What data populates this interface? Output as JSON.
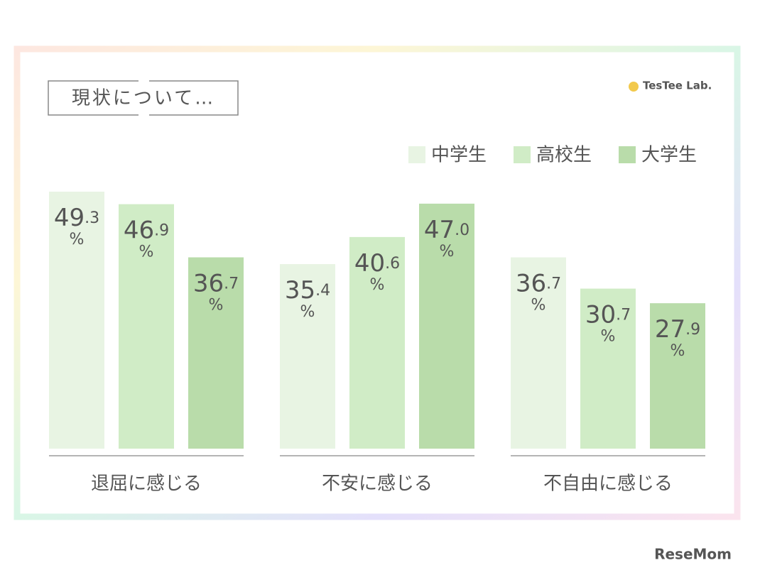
{
  "chart_data": {
    "type": "bar",
    "title": "現状について…",
    "brand": "TesTee Lab.",
    "watermark": "ReseMom",
    "categories": [
      "退屈に感じる",
      "不安に感じる",
      "不自由に感じる"
    ],
    "series": [
      {
        "name": "中学生",
        "color": "#e8f4e3",
        "values": [
          49.3,
          35.4,
          36.7
        ],
        "value_labels": [
          "49.3%",
          "35.4%",
          "36.7%"
        ]
      },
      {
        "name": "高校生",
        "color": "#d0ecc6",
        "values": [
          46.9,
          40.6,
          30.7
        ],
        "value_labels": [
          "46.9%",
          "40.6%",
          "30.7%"
        ]
      },
      {
        "name": "大学生",
        "color": "#b9dcaa",
        "values": [
          36.7,
          47.0,
          27.9
        ],
        "value_labels": [
          "36.7%",
          "47.0%",
          "27.9%"
        ]
      }
    ]
  }
}
